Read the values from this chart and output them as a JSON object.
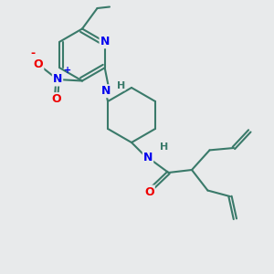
{
  "bg_color": "#e8eaeb",
  "bond_color": "#3a7a6a",
  "bond_width": 1.5,
  "atom_colors": {
    "N": "#0000ee",
    "O": "#ee0000",
    "C": "#3a7a6a",
    "H_label": "#3a7a6a"
  },
  "figsize": [
    3.0,
    3.0
  ],
  "dpi": 100,
  "xlim": [
    0,
    10
  ],
  "ylim": [
    0,
    10
  ]
}
